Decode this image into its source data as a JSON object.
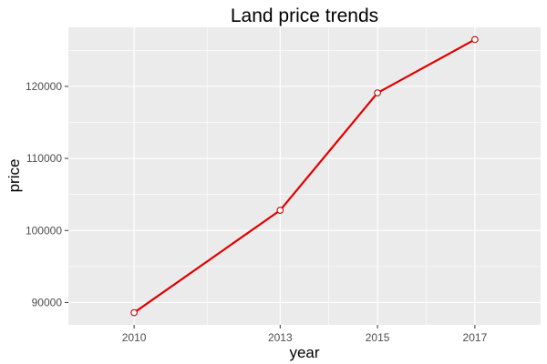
{
  "chart_data": {
    "type": "line",
    "title": "Land price trends",
    "xlabel": "year",
    "ylabel": "price",
    "x": [
      2010,
      2013,
      2015,
      2017
    ],
    "series": [
      {
        "values": [
          88600,
          102800,
          119100,
          126500
        ]
      }
    ],
    "x_ticks": [
      "2010",
      "2013",
      "2015",
      "2017"
    ],
    "y_ticks": [
      "90000",
      "100000",
      "110000",
      "120000"
    ],
    "xlim": [
      2008.65,
      2018.35
    ],
    "ylim": [
      86900,
      128200
    ],
    "grid": true,
    "legend": "none",
    "colors": {
      "panel_background": "#ebebeb",
      "grid_major": "#ffffff",
      "line": "#e00000",
      "point_outline": "#c00000",
      "point_fill": "#ffffff"
    }
  }
}
